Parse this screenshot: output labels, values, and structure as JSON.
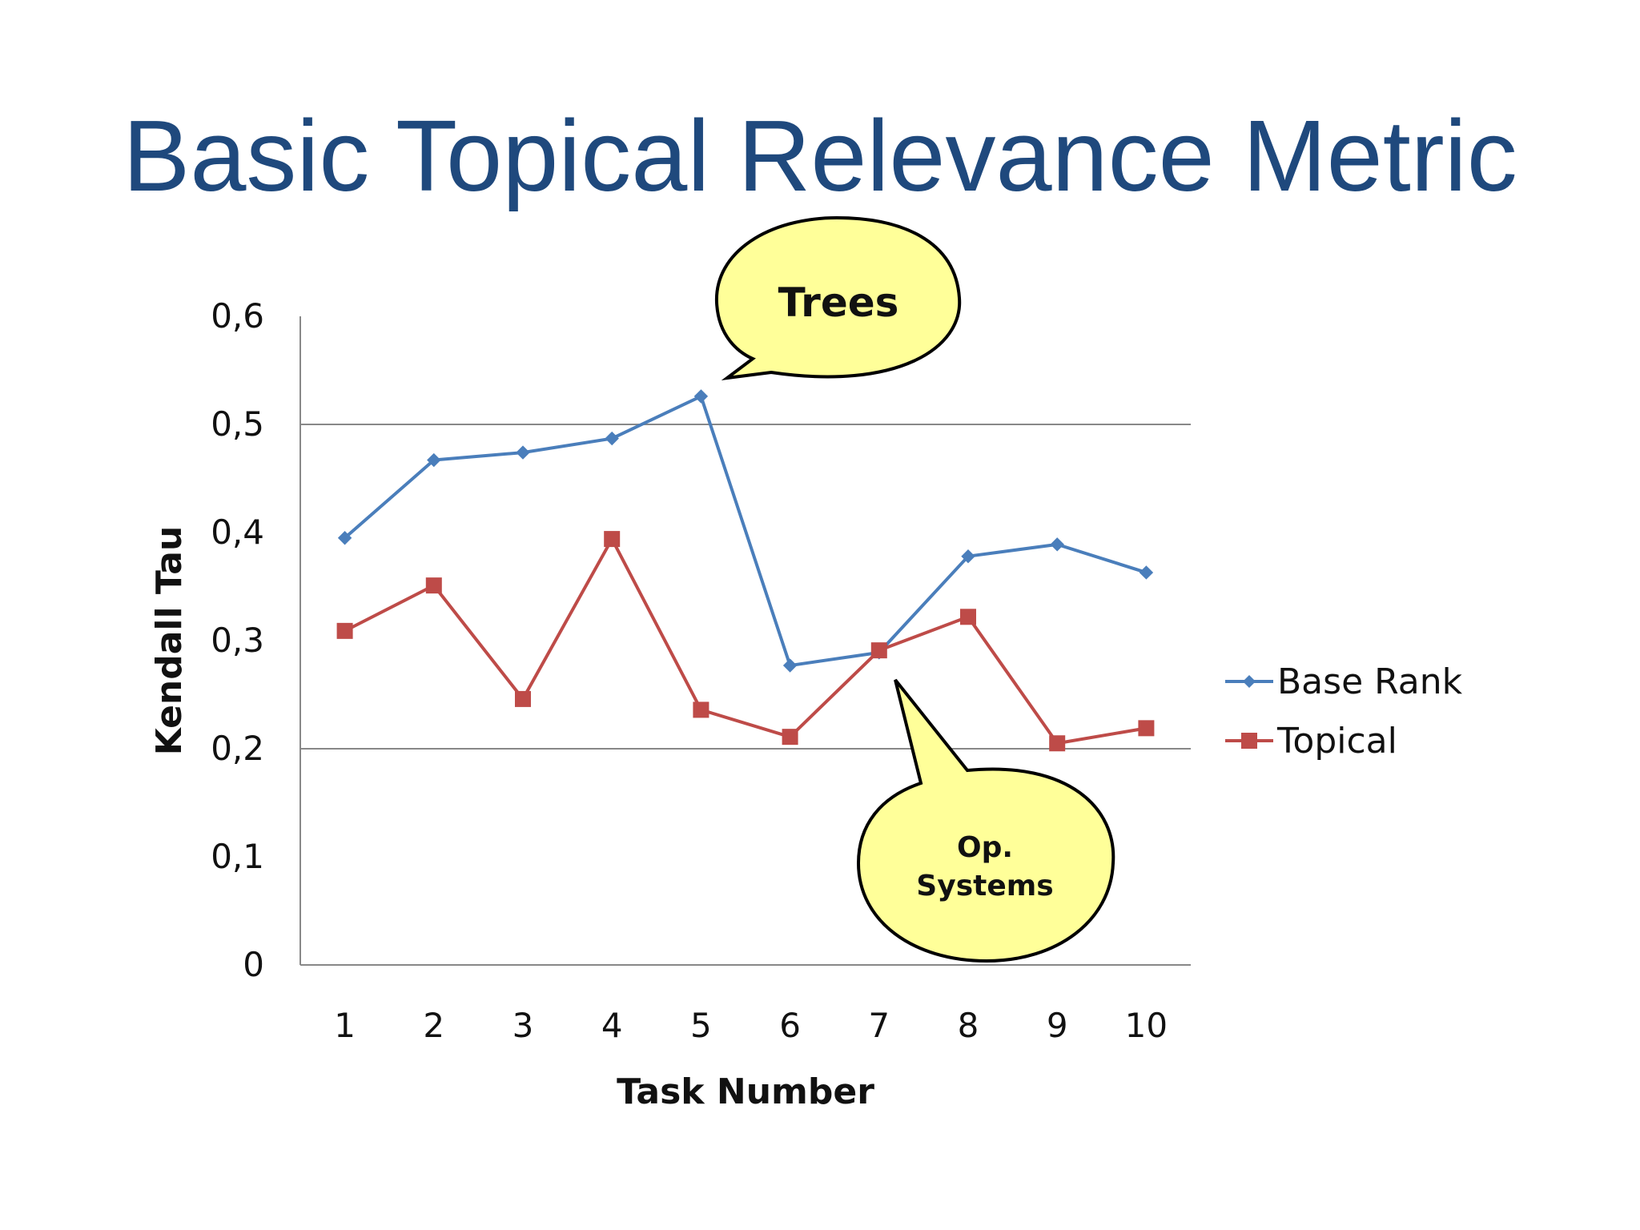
{
  "slide": {
    "title": "Basic Topical Relevance Metric"
  },
  "callouts": {
    "trees": "Trees",
    "os_line1": "Op.",
    "os_line2": "Systems",
    "fill_color": "#ffff99"
  },
  "chart_data": {
    "type": "line",
    "categories": [
      "1",
      "2",
      "3",
      "4",
      "5",
      "6",
      "7",
      "8",
      "9",
      "10"
    ],
    "series": [
      {
        "name": "Base Rank",
        "color": "#4a7ebb",
        "marker": "diamond",
        "values": [
          0.395,
          0.467,
          0.474,
          0.487,
          0.526,
          0.277,
          0.289,
          0.378,
          0.389,
          0.363
        ]
      },
      {
        "name": "Topical",
        "color": "#be4b48",
        "marker": "square",
        "values": [
          0.309,
          0.351,
          0.246,
          0.394,
          0.236,
          0.211,
          0.291,
          0.322,
          0.205,
          0.219
        ]
      }
    ],
    "xlabel": "Task Number",
    "ylabel": "Kendall Tau",
    "ylim": [
      0,
      0.6
    ],
    "yticks": [
      "0",
      "0,1",
      "0,2",
      "0,3",
      "0,4",
      "0,5",
      "0,6"
    ],
    "gridlines": [
      0,
      0.2,
      0.5
    ],
    "legend_position": "right"
  }
}
